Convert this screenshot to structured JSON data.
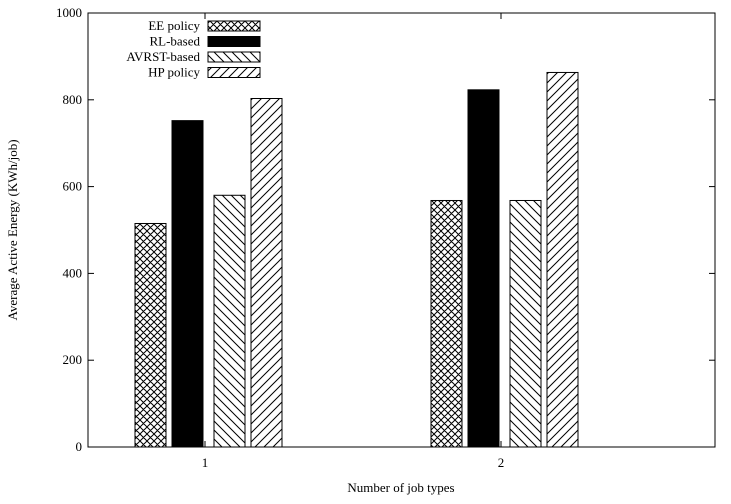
{
  "chart_data": {
    "type": "bar",
    "xlabel": "Number of job types",
    "ylabel": "Average Active Energy (KWh/job)",
    "ylim": [
      0,
      1000
    ],
    "yticks": [
      0,
      200,
      400,
      600,
      800,
      1000
    ],
    "categories": [
      "1",
      "2"
    ],
    "series": [
      {
        "name": "EE policy",
        "pattern": "crosshatch",
        "values": [
          515,
          568
        ]
      },
      {
        "name": "RL-based",
        "pattern": "solid-black",
        "values": [
          752,
          823
        ]
      },
      {
        "name": "AVRST-based",
        "pattern": "backslash-hatch",
        "values": [
          580,
          568
        ]
      },
      {
        "name": "HP policy",
        "pattern": "slash-hatch",
        "values": [
          803,
          863
        ]
      }
    ],
    "grid": false,
    "legend_position": "top-left"
  }
}
